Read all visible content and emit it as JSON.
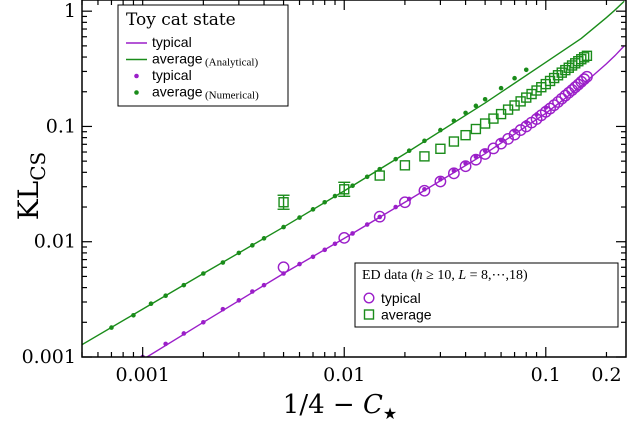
{
  "chart_data": {
    "type": "line",
    "xscale": "log",
    "yscale": "log",
    "xlim": [
      0.0005,
      0.25
    ],
    "ylim": [
      0.001,
      1.25
    ],
    "xlabel": "1/4 − C⋆",
    "ylabel": "KL",
    "ylabel_sub": "CS",
    "x_ticks": [
      {
        "value": 0.001,
        "label": "0.001"
      },
      {
        "value": 0.01,
        "label": "0.01"
      },
      {
        "value": 0.1,
        "label": "0.1"
      },
      {
        "value": 0.2,
        "label": "0.2"
      }
    ],
    "y_ticks": [
      {
        "value": 0.001,
        "label": "0.001"
      },
      {
        "value": 0.01,
        "label": "0.01"
      },
      {
        "value": 0.1,
        "label": "0.1"
      },
      {
        "value": 1,
        "label": "1"
      }
    ],
    "colors": {
      "typical": "#9b1fc9",
      "average": "#1a8c1a"
    },
    "legend_toy": {
      "title": "Toy cat state",
      "rows": [
        {
          "label": "typical",
          "note": "",
          "marker": "line",
          "series": "typical"
        },
        {
          "label": "average",
          "note": "(Analytical)",
          "marker": "line",
          "series": "average"
        },
        {
          "label": "typical",
          "note": "",
          "marker": "dot",
          "series": "typical"
        },
        {
          "label": "average",
          "note": "(Numerical)",
          "marker": "dot",
          "series": "average"
        }
      ]
    },
    "legend_ed": {
      "title": "ED data (h ≥ 10, L = 8,···,18)",
      "rows": [
        {
          "label": "typical",
          "marker": "circle",
          "series": "typical"
        },
        {
          "label": "average",
          "marker": "square",
          "series": "average"
        }
      ]
    },
    "series": [
      {
        "name": "typical (Analytical)",
        "kind": "line",
        "color_key": "typical",
        "x": [
          0.00105,
          0.002,
          0.005,
          0.01,
          0.02,
          0.05,
          0.1,
          0.15,
          0.2,
          0.22,
          0.245
        ],
        "y": [
          0.001,
          0.002,
          0.0053,
          0.0107,
          0.022,
          0.058,
          0.13,
          0.225,
          0.35,
          0.41,
          0.5
        ]
      },
      {
        "name": "average (Analytical)",
        "kind": "line",
        "color_key": "average",
        "x": [
          0.0005,
          0.001,
          0.002,
          0.005,
          0.01,
          0.02,
          0.05,
          0.1,
          0.15,
          0.2,
          0.22,
          0.245
        ],
        "y": [
          0.00128,
          0.0026,
          0.0053,
          0.0134,
          0.0276,
          0.058,
          0.16,
          0.36,
          0.58,
          0.88,
          1.02,
          1.22
        ]
      },
      {
        "name": "typical (Numerical)",
        "kind": "dots",
        "color_key": "typical",
        "x": [
          0.001,
          0.0013,
          0.0016,
          0.002,
          0.0025,
          0.003,
          0.0035,
          0.004,
          0.005,
          0.006,
          0.007,
          0.008,
          0.009,
          0.011,
          0.013,
          0.015,
          0.018,
          0.021,
          0.025,
          0.03,
          0.035,
          0.04,
          0.045,
          0.05,
          0.06,
          0.07,
          0.08,
          0.09,
          0.1
        ],
        "y": [
          0.001,
          0.0013,
          0.0016,
          0.002,
          0.0026,
          0.0031,
          0.0037,
          0.0042,
          0.0053,
          0.0064,
          0.0074,
          0.0085,
          0.0096,
          0.0118,
          0.0141,
          0.0164,
          0.02,
          0.0235,
          0.0285,
          0.0348,
          0.0412,
          0.0478,
          0.0546,
          0.0615,
          0.0762,
          0.092,
          0.109,
          0.127,
          0.146
        ]
      },
      {
        "name": "average (Numerical)",
        "kind": "dots",
        "color_key": "average",
        "x": [
          0.0007,
          0.0009,
          0.0011,
          0.0013,
          0.0016,
          0.002,
          0.0025,
          0.003,
          0.0035,
          0.004,
          0.005,
          0.006,
          0.007,
          0.008,
          0.009,
          0.011,
          0.013,
          0.015,
          0.018,
          0.021,
          0.025,
          0.03,
          0.035,
          0.04,
          0.045,
          0.05,
          0.06,
          0.07,
          0.08
        ],
        "y": [
          0.0018,
          0.0023,
          0.0029,
          0.0034,
          0.0042,
          0.0053,
          0.0066,
          0.008,
          0.0093,
          0.0107,
          0.0134,
          0.0162,
          0.0191,
          0.022,
          0.0249,
          0.0306,
          0.0366,
          0.0426,
          0.052,
          0.0616,
          0.075,
          0.093,
          0.112,
          0.131,
          0.151,
          0.172,
          0.215,
          0.262,
          0.31
        ]
      },
      {
        "name": "typical (ED data)",
        "kind": "circles",
        "color_key": "typical",
        "x": [
          0.005,
          0.01,
          0.015,
          0.02,
          0.025,
          0.03,
          0.035,
          0.04,
          0.045,
          0.05,
          0.055,
          0.06,
          0.065,
          0.07,
          0.075,
          0.08,
          0.085,
          0.09,
          0.095,
          0.1,
          0.105,
          0.11,
          0.115,
          0.12,
          0.125,
          0.13,
          0.135,
          0.14,
          0.145,
          0.15,
          0.155,
          0.16
        ],
        "y": [
          0.006,
          0.0108,
          0.0165,
          0.022,
          0.0277,
          0.0333,
          0.0392,
          0.0452,
          0.0515,
          0.0577,
          0.0645,
          0.071,
          0.078,
          0.085,
          0.093,
          0.1,
          0.108,
          0.116,
          0.125,
          0.134,
          0.143,
          0.153,
          0.163,
          0.174,
          0.185,
          0.196,
          0.207,
          0.219,
          0.231,
          0.244,
          0.257,
          0.27
        ]
      },
      {
        "name": "average (ED data)",
        "kind": "squares",
        "color_key": "average",
        "x": [
          0.005,
          0.01,
          0.015,
          0.02,
          0.025,
          0.03,
          0.035,
          0.04,
          0.045,
          0.05,
          0.055,
          0.06,
          0.065,
          0.07,
          0.075,
          0.08,
          0.085,
          0.09,
          0.095,
          0.1,
          0.105,
          0.11,
          0.115,
          0.12,
          0.125,
          0.13,
          0.135,
          0.14,
          0.145,
          0.15,
          0.155,
          0.16
        ],
        "y": [
          0.022,
          0.0285,
          0.0375,
          0.046,
          0.055,
          0.064,
          0.074,
          0.084,
          0.095,
          0.106,
          0.117,
          0.128,
          0.14,
          0.152,
          0.165,
          0.178,
          0.191,
          0.205,
          0.219,
          0.233,
          0.248,
          0.263,
          0.278,
          0.293,
          0.308,
          0.323,
          0.338,
          0.353,
          0.368,
          0.383,
          0.398,
          0.41
        ]
      }
    ]
  }
}
